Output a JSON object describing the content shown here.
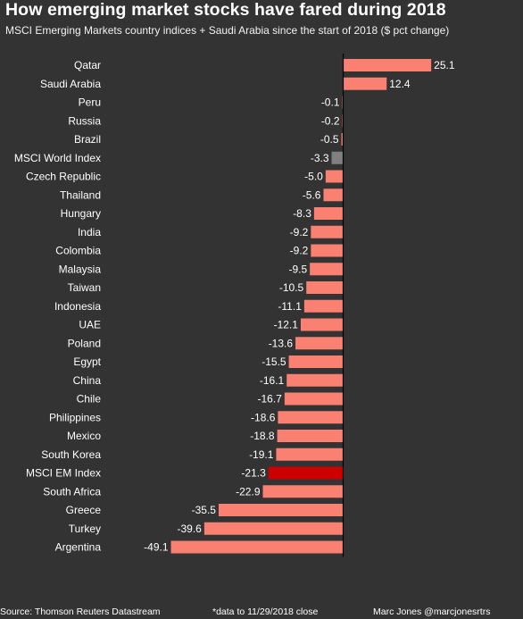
{
  "header": {
    "title": "How emerging market stocks have fared during 2018",
    "subtitle": "MSCI Emerging Markets country indices + Saudi Arabia since the start of 2018 ($ pct change)"
  },
  "footer": {
    "source": "Source: Thomson Reuters Datastream",
    "note": "*data to 11/29/2018 close",
    "credit": "Marc Jones @marcjonesrtrs"
  },
  "colors": {
    "background": "#333333",
    "bar": "#fa8072",
    "msci_world": "#808080",
    "msci_em": "#cc0000",
    "axis": "#000000"
  },
  "chart_data": {
    "type": "bar",
    "orientation": "horizontal",
    "title": "How emerging market stocks have fared during 2018",
    "subtitle": "MSCI Emerging Markets country indices + Saudi Arabia since the start of 2018 ($ pct change)",
    "xlim": [
      -50,
      26
    ],
    "categories": [
      "Qatar",
      "Saudi Arabia",
      "Peru",
      "Russia",
      "Brazil",
      "MSCI World Index",
      "Czech Republic",
      "Thailand",
      "Hungary",
      "India",
      "Colombia",
      "Malaysia",
      "Taiwan",
      "Indonesia",
      "UAE",
      "Poland",
      "Egypt",
      "China",
      "Chile",
      "Philippines",
      "Mexico",
      "South Korea",
      "MSCI EM Index",
      "South Africa",
      "Greece",
      "Turkey",
      "Argentina"
    ],
    "values": [
      25.1,
      12.4,
      -0.1,
      -0.2,
      -0.5,
      -3.3,
      -5.0,
      -5.6,
      -8.3,
      -9.2,
      -9.2,
      -9.5,
      -10.5,
      -11.1,
      -12.1,
      -13.6,
      -15.5,
      -16.1,
      -16.7,
      -18.6,
      -18.8,
      -19.1,
      -21.3,
      -22.9,
      -35.5,
      -39.6,
      -49.1
    ],
    "value_labels": [
      "25.1",
      "12.4",
      "-0.1",
      "-0.2",
      "-0.5",
      "-3.3",
      "-5.0",
      "-5.6",
      "-8.3",
      "-9.2",
      "-9.2",
      "-9.5",
      "-10.5",
      "-11.1",
      "-12.1",
      "-13.6",
      "-15.5",
      "-16.1",
      "-16.7",
      "-18.6",
      "-18.8",
      "-19.1",
      "-21.3",
      "-22.9",
      "-35.5",
      "-39.6",
      "-49.1"
    ],
    "highlight": {
      "MSCI World Index": "msci_world",
      "MSCI EM Index": "msci_em"
    },
    "grid": false,
    "legend": "none"
  }
}
